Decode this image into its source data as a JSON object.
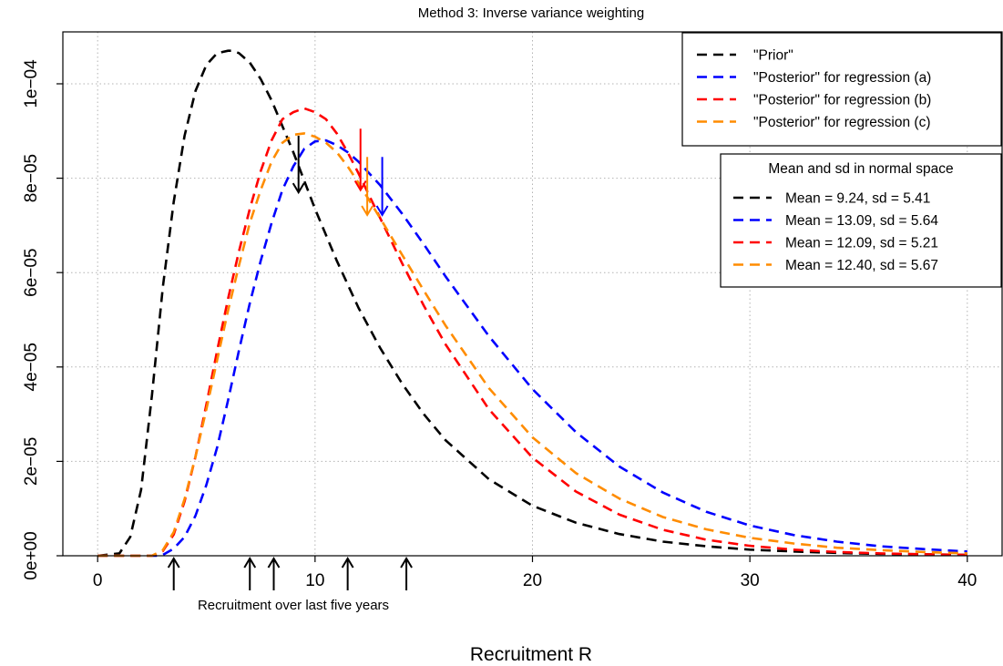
{
  "chart_data": {
    "type": "line",
    "title": "Method 3: Inverse variance weighting",
    "xlabel": "Recruitment R",
    "ylabel": "",
    "xlim": [
      -1.6,
      41.6
    ],
    "ylim": [
      0,
      0.000111
    ],
    "x_ticks": [
      {
        "value": 0,
        "label": "0"
      },
      {
        "value": 10,
        "label": "10"
      },
      {
        "value": 20,
        "label": "20"
      },
      {
        "value": 30,
        "label": "30"
      },
      {
        "value": 40,
        "label": "40"
      }
    ],
    "y_ticks": [
      {
        "value": 0,
        "label": "0e+00"
      },
      {
        "value": 2e-05,
        "label": "2e−05"
      },
      {
        "value": 4e-05,
        "label": "4e−05"
      },
      {
        "value": 6e-05,
        "label": "6e−05"
      },
      {
        "value": 8e-05,
        "label": "8e−05"
      },
      {
        "value": 0.0001,
        "label": "1e−04"
      }
    ],
    "grid": true,
    "line_style": "dashed",
    "series": [
      {
        "name": "\"Prior\"",
        "color": "#000000",
        "mean": 9.24,
        "sd": 5.41,
        "peak_x": 6.2,
        "peak_y": 0.000107,
        "x": [
          0,
          1,
          1.5,
          2,
          2.5,
          3,
          3.5,
          4,
          4.5,
          5,
          5.5,
          6,
          6.2,
          6.5,
          7,
          7.5,
          8,
          9,
          10,
          11,
          12,
          13,
          14,
          15,
          16,
          18,
          20,
          22,
          24,
          26,
          28,
          30,
          32,
          34,
          36,
          38,
          40
        ],
        "y": [
          0,
          5e-07,
          4e-06,
          1.4e-05,
          3.4e-05,
          5.7e-05,
          7.5e-05,
          8.9e-05,
          9.85e-05,
          0.000104,
          0.0001065,
          0.000107,
          0.000107,
          0.0001065,
          0.0001045,
          0.000101,
          9.65e-05,
          8.55e-05,
          7.35e-05,
          6.25e-05,
          5.25e-05,
          4.4e-05,
          3.65e-05,
          3e-05,
          2.45e-05,
          1.62e-05,
          1.06e-05,
          7e-06,
          4.6e-06,
          3e-06,
          2e-06,
          1.3e-06,
          9e-07,
          6e-07,
          4e-07,
          3e-07,
          2e-07
        ]
      },
      {
        "name": "\"Posterior\" for regression (a)",
        "color": "#0000ff",
        "mean": 13.09,
        "sd": 5.64,
        "peak_x": 10.0,
        "peak_y": 8.78e-05,
        "x": [
          0,
          2.7,
          3,
          3.5,
          4,
          4.5,
          5,
          5.5,
          6,
          6.5,
          7,
          7.5,
          8,
          8.5,
          9,
          9.5,
          10,
          10.5,
          11,
          11.5,
          12,
          13,
          14,
          15,
          16,
          18,
          20,
          22,
          24,
          26,
          28,
          30,
          32,
          34,
          36,
          38,
          40
        ],
        "y": [
          0,
          0,
          2e-07,
          1.5e-06,
          4e-06,
          8.5e-06,
          1.5e-05,
          2.3e-05,
          3.3e-05,
          4.35e-05,
          5.35e-05,
          6.25e-05,
          7.05e-05,
          7.75e-05,
          8.25e-05,
          8.62e-05,
          8.78e-05,
          8.8e-05,
          8.7e-05,
          8.55e-05,
          8.35e-05,
          7.85e-05,
          7.25e-05,
          6.6e-05,
          5.92e-05,
          4.65e-05,
          3.53e-05,
          2.62e-05,
          1.89e-05,
          1.34e-05,
          9.3e-06,
          6.4e-06,
          4.4e-06,
          3e-06,
          2e-06,
          1.4e-06,
          9e-07
        ]
      },
      {
        "name": "\"Posterior\" for regression (b)",
        "color": "#ff0000",
        "mean": 12.09,
        "sd": 5.21,
        "peak_x": 9.5,
        "peak_y": 9.48e-05,
        "x": [
          0,
          2.5,
          3,
          3.5,
          4,
          4.5,
          5,
          5.5,
          6,
          6.5,
          7,
          7.5,
          8,
          8.5,
          9,
          9.5,
          10,
          10.5,
          11,
          11.5,
          12,
          13,
          14,
          15,
          16,
          18,
          20,
          22,
          24,
          26,
          28,
          30,
          32,
          34,
          36,
          38,
          40
        ],
        "y": [
          0,
          0,
          1e-06,
          4.5e-06,
          1.15e-05,
          2.1e-05,
          3.2e-05,
          4.35e-05,
          5.45e-05,
          6.45e-05,
          7.35e-05,
          8.15e-05,
          8.8e-05,
          9.25e-05,
          9.4e-05,
          9.48e-05,
          9.4e-05,
          9.25e-05,
          8.95e-05,
          8.55e-05,
          8.1e-05,
          7.15e-05,
          6.2e-05,
          5.3e-05,
          4.48e-05,
          3.1e-05,
          2.08e-05,
          1.36e-05,
          8.7e-06,
          5.5e-06,
          3.4e-06,
          2.1e-06,
          1.3e-06,
          8e-07,
          5e-07,
          3e-07,
          2e-07
        ]
      },
      {
        "name": "\"Posterior\" for regression (c)",
        "color": "#ff8c00",
        "mean": 12.4,
        "sd": 5.67,
        "peak_x": 9.3,
        "peak_y": 8.95e-05,
        "x": [
          0,
          2.5,
          3,
          3.5,
          4,
          4.5,
          5,
          5.5,
          6,
          6.5,
          7,
          7.5,
          8,
          8.5,
          9,
          9.5,
          10,
          10.5,
          11,
          11.5,
          12,
          13,
          14,
          15,
          16,
          18,
          20,
          22,
          24,
          26,
          28,
          30,
          32,
          34,
          36,
          38,
          40
        ],
        "y": [
          0,
          0,
          1.2e-06,
          5e-06,
          1.2e-05,
          2.1e-05,
          3.1e-05,
          4.15e-05,
          5.2e-05,
          6.15e-05,
          7.05e-05,
          7.75e-05,
          8.35e-05,
          8.75e-05,
          8.92e-05,
          8.95e-05,
          8.88e-05,
          8.75e-05,
          8.55e-05,
          8.25e-05,
          7.9e-05,
          7.15e-05,
          6.38e-05,
          5.62e-05,
          4.88e-05,
          3.55e-05,
          2.51e-05,
          1.75e-05,
          1.21e-05,
          8.2e-06,
          5.6e-06,
          3.8e-06,
          2.6e-06,
          1.7e-06,
          1.2e-06,
          8e-07,
          5e-07
        ]
      }
    ],
    "legends": [
      {
        "position": "top-right",
        "title": "",
        "entries": [
          "\"Prior\"",
          "\"Posterior\" for regression (a)",
          "\"Posterior\" for regression (b)",
          "\"Posterior\" for regression (c)"
        ],
        "colors": [
          "#000000",
          "#0000ff",
          "#ff0000",
          "#ff8c00"
        ]
      },
      {
        "position": "right",
        "title": "Mean and sd in normal space",
        "entries": [
          "Mean = 9.24, sd = 5.41",
          "Mean = 13.09, sd = 5.64",
          "Mean = 12.09, sd = 5.21",
          "Mean = 12.40, sd = 5.67"
        ],
        "colors": [
          "#000000",
          "#0000ff",
          "#ff0000",
          "#ff8c00"
        ]
      }
    ],
    "mean_arrows": [
      {
        "x": 9.24,
        "color": "#000000",
        "y_from": 8.9e-05,
        "y_to": 7.7e-05
      },
      {
        "x": 13.09,
        "color": "#0000ff",
        "y_from": 8.45e-05,
        "y_to": 7.22e-05
      },
      {
        "x": 12.09,
        "color": "#ff0000",
        "y_from": 9.05e-05,
        "y_to": 7.75e-05
      },
      {
        "x": 12.4,
        "color": "#ff8c00",
        "y_from": 8.45e-05,
        "y_to": 7.22e-05
      }
    ],
    "recruitment_points": {
      "label": "Recruitment over last five years",
      "x": [
        3.5,
        7.0,
        8.1,
        11.5,
        14.2
      ]
    }
  }
}
